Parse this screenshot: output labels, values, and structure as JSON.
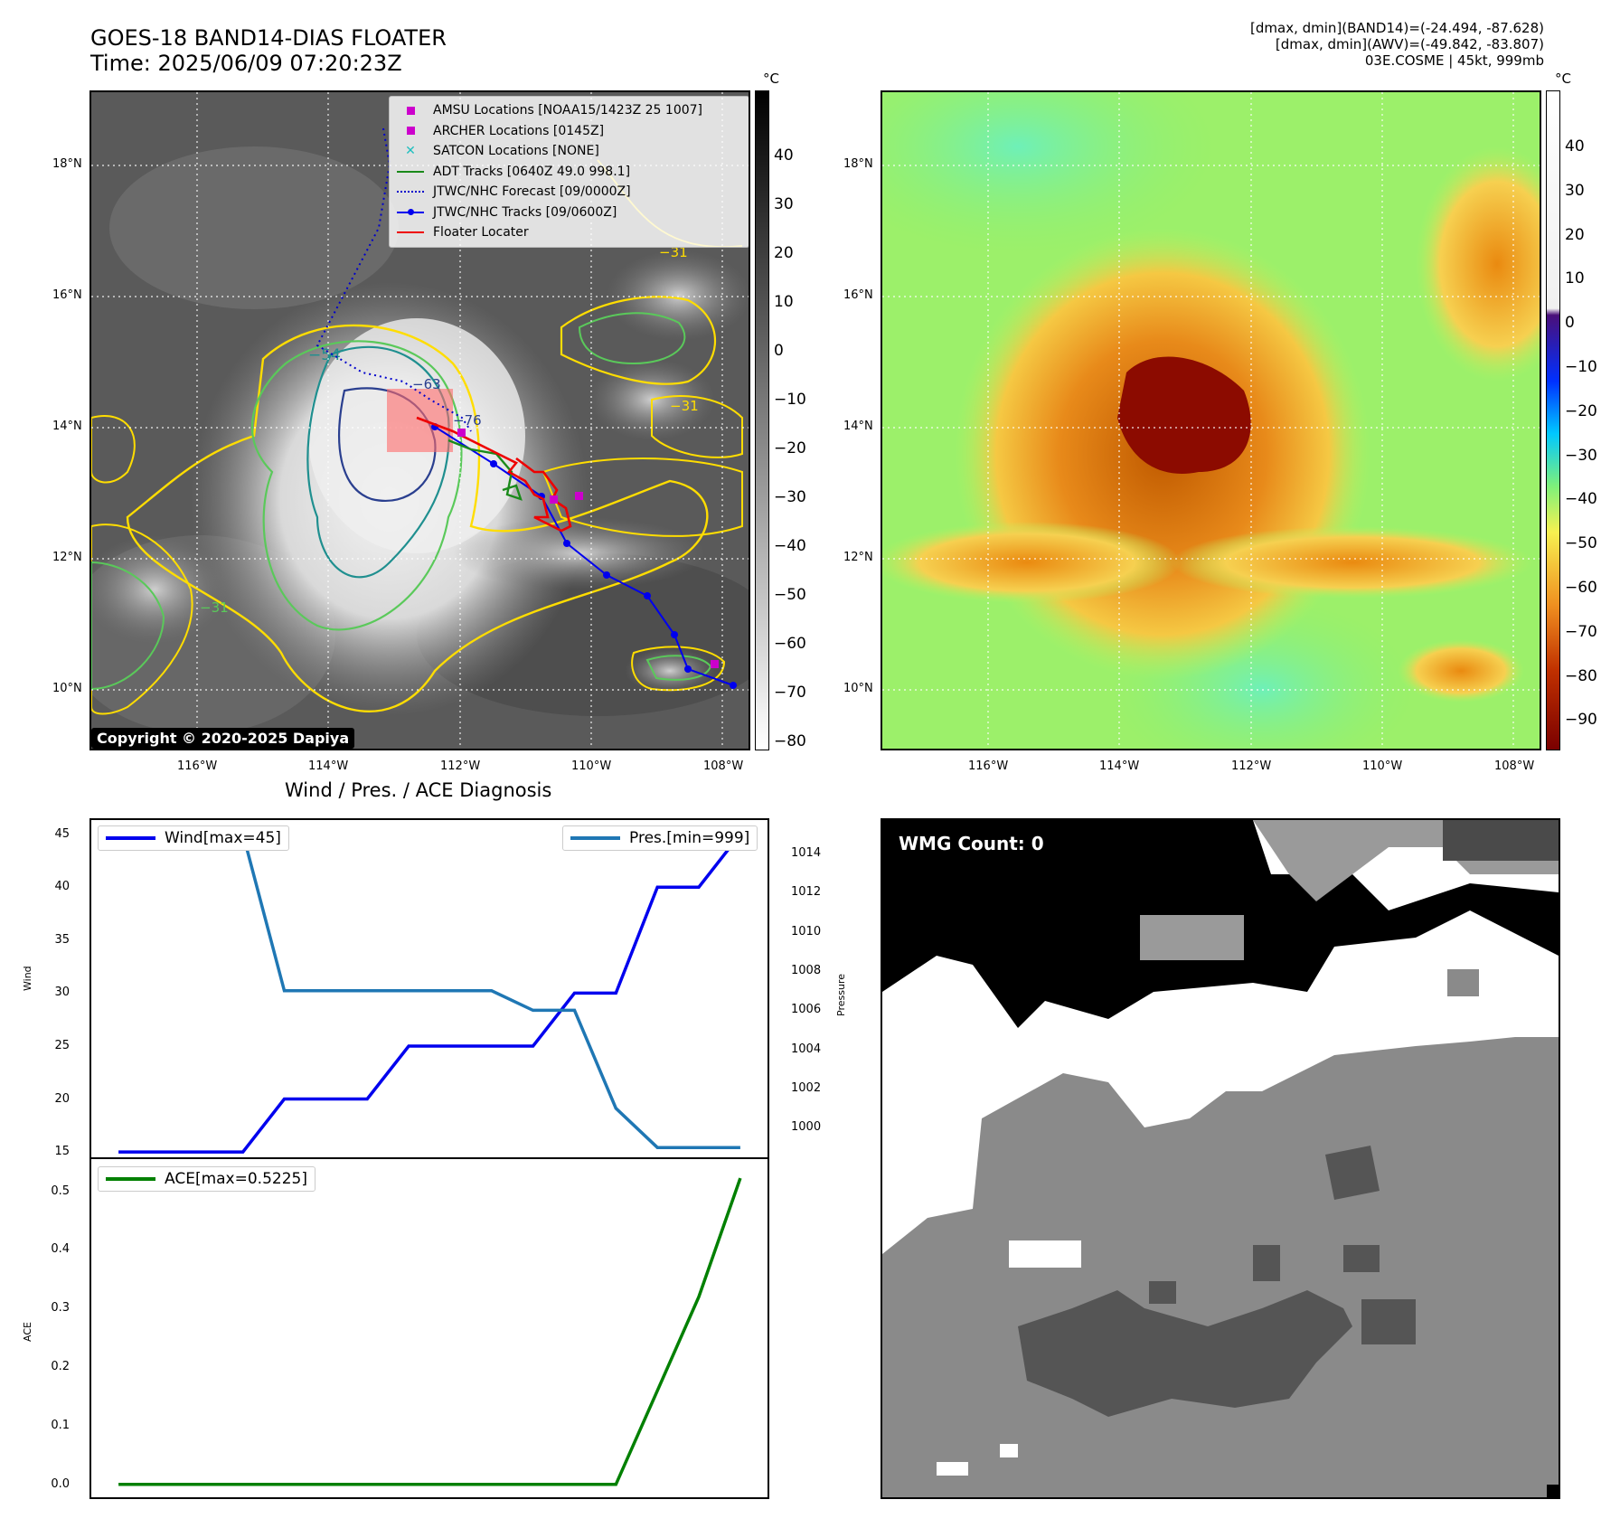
{
  "header": {
    "title_line1": "GOES-18 BAND14-DIAS FLOATER",
    "title_line2": "Time: 2025/06/09 07:20:23Z",
    "info_line1": "[dmax, dmin](BAND14)=(-24.494, -87.628)",
    "info_line2": "[dmax, dmin](AWV)=(-49.842, -83.807)",
    "info_line3": "03E.COSME | 45kt, 999mb"
  },
  "map_axes": {
    "lat_labels": [
      "18°N",
      "16°N",
      "14°N",
      "12°N",
      "10°N"
    ],
    "lon_labels": [
      "116°W",
      "114°W",
      "112°W",
      "110°W",
      "108°W"
    ]
  },
  "ir_panel": {
    "colorbar_unit": "°C",
    "colorbar_ticks": [
      "40",
      "30",
      "20",
      "10",
      "0",
      "−10",
      "−20",
      "−30",
      "−40",
      "−50",
      "−60",
      "−70",
      "−80"
    ],
    "copyright": "Copyright © 2020-2025 Dapiya",
    "contour_labels": [
      "−54",
      "−63",
      "−76",
      "−31",
      "−31",
      "−31"
    ],
    "legend": [
      {
        "label": "AMSU Locations [NOAA15/1423Z 25 1007]",
        "color": "#cc00cc",
        "symbol": "square"
      },
      {
        "label": "ARCHER Locations [0145Z]",
        "color": "#cc00cc",
        "symbol": "square"
      },
      {
        "label": "SATCON Locations [NONE]",
        "color": "#1fbfbf",
        "symbol": "x"
      },
      {
        "label": "ADT Tracks [0640Z 49.0 998.1]",
        "color": "#1a8a1a",
        "symbol": "line"
      },
      {
        "label": "JTWC/NHC Forecast [09/0000Z]",
        "color": "#0000cc",
        "symbol": "dotted"
      },
      {
        "label": "JTWC/NHC Tracks [09/0600Z]",
        "color": "#0000ee",
        "symbol": "line-dot"
      },
      {
        "label": "Floater Locater",
        "color": "#ee0000",
        "symbol": "line"
      }
    ]
  },
  "wv_panel": {
    "colorbar_unit": "°C",
    "colorbar_ticks": [
      "40",
      "30",
      "20",
      "10",
      "0",
      "−10",
      "−20",
      "−30",
      "−40",
      "−50",
      "−60",
      "−70",
      "−80",
      "−90"
    ]
  },
  "diagnosis": {
    "title": "Wind / Pres. / ACE Diagnosis",
    "wind_axis_label": "Wind",
    "pressure_axis_label": "Pressure",
    "ace_axis_label": "ACE",
    "wind_ticks": [
      "45",
      "40",
      "35",
      "30",
      "25",
      "20",
      "15"
    ],
    "pressure_ticks": [
      "1014",
      "1012",
      "1010",
      "1008",
      "1006",
      "1004",
      "1002",
      "1000"
    ],
    "ace_ticks": [
      "0.5",
      "0.4",
      "0.3",
      "0.2",
      "0.1",
      "0.0"
    ],
    "wind_legend": "Wind[max=45]",
    "pres_legend": "Pres.[min=999]",
    "ace_legend": "ACE[max=0.5225]"
  },
  "wmg_panel": {
    "label": "WMG Count: 0"
  },
  "chart_data": [
    {
      "type": "line",
      "title": "Wind / Pres. / ACE Diagnosis",
      "x": [
        0,
        1,
        2,
        3,
        4,
        5,
        6,
        7,
        8,
        9,
        10,
        11,
        12,
        13,
        14,
        15
      ],
      "series": [
        {
          "name": "Wind[max=45]",
          "axis": "Wind",
          "color": "#0000ee",
          "values": [
            15,
            15,
            15,
            15,
            20,
            20,
            20,
            25,
            25,
            25,
            25,
            30,
            30,
            40,
            40,
            45
          ]
        },
        {
          "name": "Pres.[min=999]",
          "axis": "Pressure",
          "color": "#1f77b4",
          "values": [
            1015,
            1015,
            1015,
            1015,
            1007,
            1007,
            1007,
            1007,
            1007,
            1007,
            1006,
            1006,
            1001,
            999,
            999,
            999
          ]
        }
      ],
      "ylim_wind": [
        14.5,
        46.5
      ],
      "ylim_pressure": [
        998.5,
        1015.8
      ],
      "ylabel_left": "Wind",
      "ylabel_right": "Pressure"
    },
    {
      "type": "line",
      "x": [
        0,
        1,
        2,
        3,
        4,
        5,
        6,
        7,
        8,
        9,
        10,
        11,
        12,
        13,
        14,
        15
      ],
      "series": [
        {
          "name": "ACE[max=0.5225]",
          "color": "#008000",
          "values": [
            0,
            0,
            0,
            0,
            0,
            0,
            0,
            0,
            0,
            0,
            0,
            0,
            0,
            0.16,
            0.32,
            0.5225
          ]
        }
      ],
      "ylim": [
        -0.025,
        0.555
      ],
      "ylabel": "ACE"
    }
  ]
}
